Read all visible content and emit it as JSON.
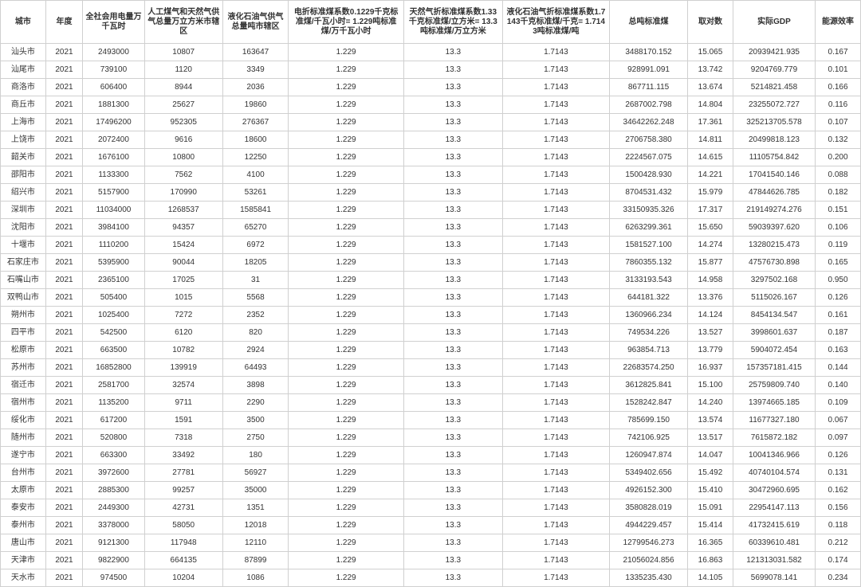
{
  "table": {
    "columns": [
      "城市",
      "年度",
      "全社会用电量万千瓦时",
      "人工煤气和天然气供气总量万立方米市辖区",
      "液化石油气供气总量吨市辖区",
      "电折标准煤系数0.1229千克标准煤/千瓦小时= 1.229吨标准煤/万千瓦小时",
      "天然气折标准煤系数1.33千克标准煤/立方米= 13.3吨标准煤/万立方米",
      "液化石油气折标准煤系数1.7143千克标准煤/千克= 1.7143吨标准煤/吨",
      "总吨标准煤",
      "取对数",
      "实际GDP",
      "能源效率"
    ],
    "rows": [
      [
        "汕头市",
        "2021",
        "2493000",
        "10807",
        "163647",
        "1.229",
        "13.3",
        "1.7143",
        "3488170.152",
        "15.065",
        "20939421.935",
        "0.167"
      ],
      [
        "汕尾市",
        "2021",
        "739100",
        "1120",
        "3349",
        "1.229",
        "13.3",
        "1.7143",
        "928991.091",
        "13.742",
        "9204769.779",
        "0.101"
      ],
      [
        "商洛市",
        "2021",
        "606400",
        "8944",
        "2036",
        "1.229",
        "13.3",
        "1.7143",
        "867711.115",
        "13.674",
        "5214821.458",
        "0.166"
      ],
      [
        "商丘市",
        "2021",
        "1881300",
        "25627",
        "19860",
        "1.229",
        "13.3",
        "1.7143",
        "2687002.798",
        "14.804",
        "23255072.727",
        "0.116"
      ],
      [
        "上海市",
        "2021",
        "17496200",
        "952305",
        "276367",
        "1.229",
        "13.3",
        "1.7143",
        "34642262.248",
        "17.361",
        "325213705.578",
        "0.107"
      ],
      [
        "上饶市",
        "2021",
        "2072400",
        "9616",
        "18600",
        "1.229",
        "13.3",
        "1.7143",
        "2706758.380",
        "14.811",
        "20499818.123",
        "0.132"
      ],
      [
        "韶关市",
        "2021",
        "1676100",
        "10800",
        "12250",
        "1.229",
        "13.3",
        "1.7143",
        "2224567.075",
        "14.615",
        "11105754.842",
        "0.200"
      ],
      [
        "邵阳市",
        "2021",
        "1133300",
        "7562",
        "4100",
        "1.229",
        "13.3",
        "1.7143",
        "1500428.930",
        "14.221",
        "17041540.146",
        "0.088"
      ],
      [
        "绍兴市",
        "2021",
        "5157900",
        "170990",
        "53261",
        "1.229",
        "13.3",
        "1.7143",
        "8704531.432",
        "15.979",
        "47844626.785",
        "0.182"
      ],
      [
        "深圳市",
        "2021",
        "11034000",
        "1268537",
        "1585841",
        "1.229",
        "13.3",
        "1.7143",
        "33150935.326",
        "17.317",
        "219149274.276",
        "0.151"
      ],
      [
        "沈阳市",
        "2021",
        "3984100",
        "94357",
        "65270",
        "1.229",
        "13.3",
        "1.7143",
        "6263299.361",
        "15.650",
        "59039397.620",
        "0.106"
      ],
      [
        "十堰市",
        "2021",
        "1110200",
        "15424",
        "6972",
        "1.229",
        "13.3",
        "1.7143",
        "1581527.100",
        "14.274",
        "13280215.473",
        "0.119"
      ],
      [
        "石家庄市",
        "2021",
        "5395900",
        "90044",
        "18205",
        "1.229",
        "13.3",
        "1.7143",
        "7860355.132",
        "15.877",
        "47576730.898",
        "0.165"
      ],
      [
        "石嘴山市",
        "2021",
        "2365100",
        "17025",
        "31",
        "1.229",
        "13.3",
        "1.7143",
        "3133193.543",
        "14.958",
        "3297502.168",
        "0.950"
      ],
      [
        "双鸭山市",
        "2021",
        "505400",
        "1015",
        "5568",
        "1.229",
        "13.3",
        "1.7143",
        "644181.322",
        "13.376",
        "5115026.167",
        "0.126"
      ],
      [
        "朔州市",
        "2021",
        "1025400",
        "7272",
        "2352",
        "1.229",
        "13.3",
        "1.7143",
        "1360966.234",
        "14.124",
        "8454134.547",
        "0.161"
      ],
      [
        "四平市",
        "2021",
        "542500",
        "6120",
        "820",
        "1.229",
        "13.3",
        "1.7143",
        "749534.226",
        "13.527",
        "3998601.637",
        "0.187"
      ],
      [
        "松原市",
        "2021",
        "663500",
        "10782",
        "2924",
        "1.229",
        "13.3",
        "1.7143",
        "963854.713",
        "13.779",
        "5904072.454",
        "0.163"
      ],
      [
        "苏州市",
        "2021",
        "16852800",
        "139919",
        "64493",
        "1.229",
        "13.3",
        "1.7143",
        "22683574.250",
        "16.937",
        "157357181.415",
        "0.144"
      ],
      [
        "宿迁市",
        "2021",
        "2581700",
        "32574",
        "3898",
        "1.229",
        "13.3",
        "1.7143",
        "3612825.841",
        "15.100",
        "25759809.740",
        "0.140"
      ],
      [
        "宿州市",
        "2021",
        "1135200",
        "9711",
        "2290",
        "1.229",
        "13.3",
        "1.7143",
        "1528242.847",
        "14.240",
        "13974665.185",
        "0.109"
      ],
      [
        "绥化市",
        "2021",
        "617200",
        "1591",
        "3500",
        "1.229",
        "13.3",
        "1.7143",
        "785699.150",
        "13.574",
        "11677327.180",
        "0.067"
      ],
      [
        "随州市",
        "2021",
        "520800",
        "7318",
        "2750",
        "1.229",
        "13.3",
        "1.7143",
        "742106.925",
        "13.517",
        "7615872.182",
        "0.097"
      ],
      [
        "遂宁市",
        "2021",
        "663300",
        "33492",
        "180",
        "1.229",
        "13.3",
        "1.7143",
        "1260947.874",
        "14.047",
        "10041346.966",
        "0.126"
      ],
      [
        "台州市",
        "2021",
        "3972600",
        "27781",
        "56927",
        "1.229",
        "13.3",
        "1.7143",
        "5349402.656",
        "15.492",
        "40740104.574",
        "0.131"
      ],
      [
        "太原市",
        "2021",
        "2885300",
        "99257",
        "35000",
        "1.229",
        "13.3",
        "1.7143",
        "4926152.300",
        "15.410",
        "30472960.695",
        "0.162"
      ],
      [
        "泰安市",
        "2021",
        "2449300",
        "42731",
        "1351",
        "1.229",
        "13.3",
        "1.7143",
        "3580828.019",
        "15.091",
        "22954147.113",
        "0.156"
      ],
      [
        "泰州市",
        "2021",
        "3378000",
        "58050",
        "12018",
        "1.229",
        "13.3",
        "1.7143",
        "4944229.457",
        "15.414",
        "41732415.619",
        "0.118"
      ],
      [
        "唐山市",
        "2021",
        "9121300",
        "117948",
        "12110",
        "1.229",
        "13.3",
        "1.7143",
        "12799546.273",
        "16.365",
        "60339610.481",
        "0.212"
      ],
      [
        "天津市",
        "2021",
        "9822900",
        "664135",
        "87899",
        "1.229",
        "13.3",
        "1.7143",
        "21056024.856",
        "16.863",
        "121313031.582",
        "0.174"
      ],
      [
        "天水市",
        "2021",
        "974500",
        "10204",
        "1086",
        "1.229",
        "13.3",
        "1.7143",
        "1335235.430",
        "14.105",
        "5699078.141",
        "0.234"
      ]
    ]
  }
}
